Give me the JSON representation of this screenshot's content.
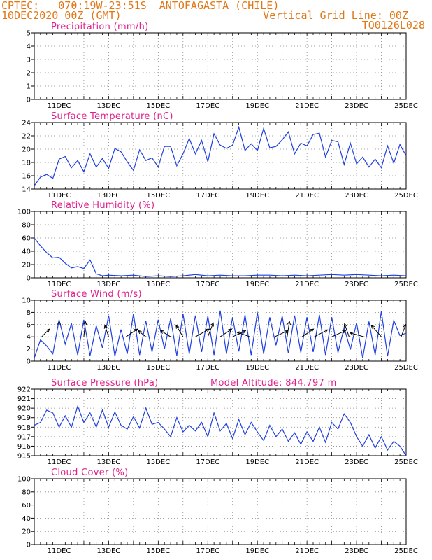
{
  "header": {
    "line1_left": "CPTEC:   070:19W-23:51S  ANTOFAGASTA (CHILE)",
    "line2_left": "10DEC2020 00Z (GMT)",
    "line1_right": "Vertical Grid Line: 00Z",
    "line2_right": "TQ0126L028"
  },
  "colors": {
    "header": "#e07818",
    "title": "#e0208c",
    "line": "#1f3fe0",
    "arrow": "#000000",
    "grid": "#888888"
  },
  "x_tick_labels": [
    "11DEC",
    "13DEC",
    "15DEC",
    "17DEC",
    "19DEC",
    "21DEC",
    "23DEC",
    "25DEC"
  ],
  "chart_data": [
    {
      "type": "line",
      "title": "Precipitation (mm/h)",
      "x_unit": "days since 10DEC2020 00Z",
      "xlim": [
        0,
        15
      ],
      "ylim": [
        0,
        5
      ],
      "yticks": [
        "0",
        "1",
        "2",
        "3",
        "4",
        "5"
      ],
      "series": []
    },
    {
      "type": "line",
      "title": "Surface Temperature (nC)",
      "xlim": [
        0,
        15
      ],
      "ylim": [
        14,
        24
      ],
      "yticks": [
        "14",
        "16",
        "18",
        "20",
        "22",
        "24"
      ],
      "series": [
        {
          "x": [
            0,
            0.25,
            0.5,
            0.75,
            1,
            1.25,
            1.5,
            1.75,
            2,
            2.25,
            2.5,
            2.75,
            3,
            3.25,
            3.5,
            3.75,
            4,
            4.25,
            4.5,
            4.75,
            5,
            5.25,
            5.5,
            5.75,
            6,
            6.25,
            6.5,
            6.75,
            7,
            7.25,
            7.5,
            7.75,
            8,
            8.25,
            8.5,
            8.75,
            9,
            9.25,
            9.5,
            9.75,
            10,
            10.25,
            10.5,
            10.75,
            11,
            11.25,
            11.5,
            11.75,
            12,
            12.25,
            12.5,
            12.75,
            13,
            13.25,
            13.5,
            13.75,
            14,
            14.25,
            14.5,
            14.75,
            15
          ],
          "values": [
            14.5,
            15.8,
            16.2,
            15.6,
            18.5,
            18.9,
            17.2,
            18.3,
            16.6,
            19.3,
            17.3,
            18.6,
            17.1,
            20.1,
            19.6,
            18.1,
            16.8,
            19.9,
            18.3,
            18.7,
            17.3,
            20.4,
            20.4,
            17.5,
            19.3,
            21.6,
            19.3,
            21.3,
            18.1,
            22.3,
            20.6,
            20.1,
            20.6,
            23.3,
            19.8,
            20.8,
            19.8,
            23.1,
            20.2,
            20.4,
            21.4,
            22.6,
            19.3,
            20.9,
            20.5,
            22.2,
            22.4,
            18.8,
            21.3,
            21.1,
            17.7,
            20.9,
            17.8,
            18.8,
            17.3,
            18.5,
            17.2,
            20.5,
            17.9,
            20.7,
            19.0
          ]
        }
      ]
    },
    {
      "type": "line",
      "title": "Relative Humidity (%)",
      "xlim": [
        0,
        15
      ],
      "ylim": [
        0,
        100
      ],
      "yticks": [
        "0",
        "20",
        "40",
        "60",
        "80",
        "100"
      ],
      "series": [
        {
          "x": [
            0,
            0.25,
            0.5,
            0.75,
            1,
            1.25,
            1.5,
            1.75,
            2,
            2.25,
            2.5,
            2.75,
            3,
            3.5,
            4,
            4.5,
            5,
            5.5,
            6,
            6.5,
            7,
            7.5,
            8,
            8.5,
            9,
            9.5,
            10,
            10.5,
            11,
            11.5,
            12,
            12.5,
            13,
            13.5,
            14,
            14.5,
            15
          ],
          "values": [
            60,
            48,
            38,
            30,
            31,
            22,
            15,
            17,
            14,
            27,
            6,
            3,
            4,
            3,
            4,
            2,
            3,
            2,
            3,
            5,
            3,
            4,
            3,
            3,
            4,
            4,
            3,
            4,
            3,
            4,
            5,
            4,
            5,
            4,
            3,
            4,
            3
          ]
        }
      ]
    },
    {
      "type": "line",
      "title": "Surface Wind (m/s)",
      "xlim": [
        0,
        15
      ],
      "ylim": [
        0,
        10
      ],
      "yticks": [
        "0",
        "2",
        "4",
        "6",
        "8",
        "10"
      ],
      "series": [
        {
          "x": [
            0,
            0.25,
            0.5,
            0.75,
            1,
            1.25,
            1.5,
            1.75,
            2,
            2.25,
            2.5,
            2.75,
            3,
            3.25,
            3.5,
            3.75,
            4,
            4.25,
            4.5,
            4.75,
            5,
            5.25,
            5.5,
            5.75,
            6,
            6.25,
            6.5,
            6.75,
            7,
            7.25,
            7.5,
            7.75,
            8,
            8.25,
            8.5,
            8.75,
            9,
            9.25,
            9.5,
            9.75,
            10,
            10.25,
            10.5,
            10.75,
            11,
            11.25,
            11.5,
            11.75,
            12,
            12.25,
            12.5,
            12.75,
            13,
            13.25,
            13.5,
            13.75,
            14,
            14.25,
            14.5,
            14.75,
            15
          ],
          "values": [
            0.5,
            3.5,
            2.5,
            1.2,
            6.8,
            2.8,
            6.2,
            1.0,
            6.8,
            0.9,
            5.8,
            2.2,
            7.5,
            0.8,
            5.2,
            1.2,
            7.8,
            1.0,
            6.6,
            1.5,
            6.8,
            2.0,
            7.0,
            0.9,
            7.8,
            1.2,
            7.5,
            1.5,
            7.4,
            1.0,
            8.3,
            1.2,
            7.2,
            1.6,
            7.6,
            1.0,
            8.0,
            1.2,
            7.2,
            2.6,
            7.4,
            1.3,
            7.5,
            1.4,
            7.2,
            1.5,
            7.6,
            1.0,
            7.2,
            1.4,
            5.5,
            1.9,
            6.3,
            0.5,
            6.5,
            1.0,
            8.2,
            0.8,
            6.7,
            4.2,
            4.6
          ]
        }
      ],
      "wind_vectors": [
        {
          "x": 0.3,
          "u": 1.0,
          "v": 1.0
        },
        {
          "x": 1.0,
          "u": 0.0,
          "v": 2.0
        },
        {
          "x": 2.0,
          "u": 0.2,
          "v": 2.0
        },
        {
          "x": 3.0,
          "u": -0.5,
          "v": 1.5
        },
        {
          "x": 3.7,
          "u": 1.5,
          "v": 1.0
        },
        {
          "x": 4.5,
          "u": -1.0,
          "v": 0.8
        },
        {
          "x": 5.5,
          "u": -1.3,
          "v": 0.8
        },
        {
          "x": 6.0,
          "u": -0.9,
          "v": 1.5
        },
        {
          "x": 6.5,
          "u": 1.8,
          "v": 1.0
        },
        {
          "x": 7.0,
          "u": 0.7,
          "v": 1.8
        },
        {
          "x": 7.5,
          "u": 1.5,
          "v": 1.0
        },
        {
          "x": 8.0,
          "u": 1.7,
          "v": 0.8
        },
        {
          "x": 8.7,
          "u": -1.7,
          "v": 0.6
        },
        {
          "x": 9.7,
          "u": 1.7,
          "v": 0.8
        },
        {
          "x": 10.2,
          "u": 0.3,
          "v": 2.0
        },
        {
          "x": 10.8,
          "u": 1.5,
          "v": 1.0
        },
        {
          "x": 11.3,
          "u": 1.7,
          "v": 0.9
        },
        {
          "x": 12.0,
          "u": 1.8,
          "v": 0.8
        },
        {
          "x": 12.7,
          "u": -0.6,
          "v": 1.7
        },
        {
          "x": 13.3,
          "u": -1.8,
          "v": 0.5
        },
        {
          "x": 14.0,
          "u": -1.3,
          "v": 1.5
        },
        {
          "x": 14.8,
          "u": 0.6,
          "v": 1.6
        }
      ]
    },
    {
      "type": "line",
      "title": "Surface Pressure (hPa)",
      "annotation": "Model Altitude: 844.797 m",
      "xlim": [
        0,
        15
      ],
      "ylim": [
        915,
        922
      ],
      "yticks": [
        "915",
        "916",
        "917",
        "918",
        "919",
        "920",
        "921",
        "922"
      ],
      "series": [
        {
          "x": [
            0,
            0.25,
            0.5,
            0.75,
            1,
            1.25,
            1.5,
            1.75,
            2,
            2.25,
            2.5,
            2.75,
            3,
            3.25,
            3.5,
            3.75,
            4,
            4.25,
            4.5,
            4.75,
            5,
            5.25,
            5.5,
            5.75,
            6,
            6.25,
            6.5,
            6.75,
            7,
            7.25,
            7.5,
            7.75,
            8,
            8.25,
            8.5,
            8.75,
            9,
            9.25,
            9.5,
            9.75,
            10,
            10.25,
            10.5,
            10.75,
            11,
            11.25,
            11.5,
            11.75,
            12,
            12.25,
            12.5,
            12.75,
            13,
            13.25,
            13.5,
            13.75,
            14,
            14.25,
            14.5,
            14.75,
            15
          ],
          "values": [
            918.2,
            918.5,
            919.8,
            919.5,
            918.0,
            919.2,
            918.0,
            920.2,
            918.5,
            919.5,
            918.0,
            919.8,
            918.0,
            919.6,
            918.2,
            917.8,
            919.1,
            917.9,
            920.0,
            918.3,
            918.5,
            917.8,
            917.0,
            919.0,
            917.5,
            918.2,
            917.6,
            918.5,
            917.0,
            919.5,
            917.6,
            918.4,
            916.8,
            918.8,
            917.2,
            918.5,
            917.5,
            916.6,
            918.2,
            917.0,
            917.8,
            916.5,
            917.4,
            916.2,
            917.5,
            916.5,
            918.0,
            916.4,
            918.5,
            917.8,
            919.4,
            918.5,
            917.0,
            916.0,
            917.2,
            915.8,
            917.0,
            915.6,
            916.5,
            916.0,
            915.0
          ]
        }
      ]
    },
    {
      "type": "line",
      "title": "Cloud Cover (%)",
      "xlim": [
        0,
        15
      ],
      "ylim": [
        0,
        100
      ],
      "yticks": [
        "0",
        "20",
        "40",
        "60",
        "80",
        "100"
      ],
      "series": []
    }
  ]
}
